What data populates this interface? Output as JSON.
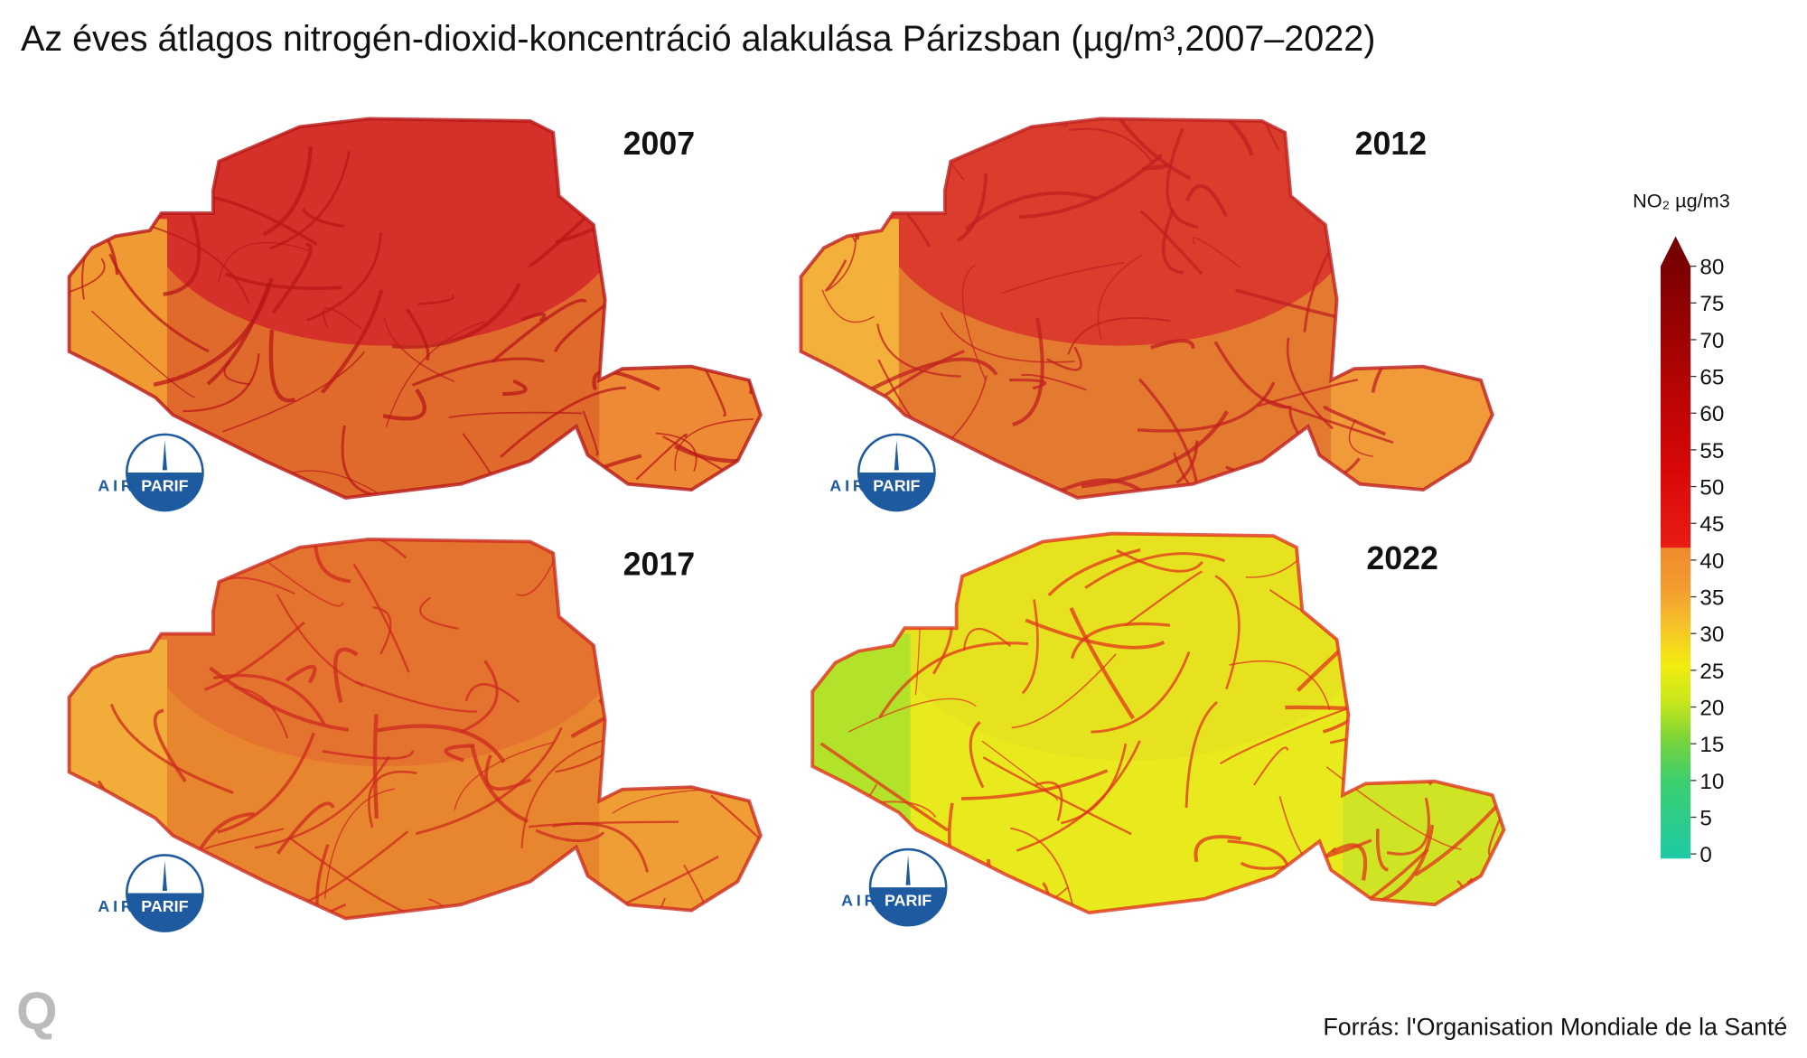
{
  "title": "Az éves átlagos nitrogén-dioxid-koncentráció alakulása  Párizsban (µg/m³,2007–2022)",
  "panels": [
    {
      "year": "2007"
    },
    {
      "year": "2012"
    },
    {
      "year": "2017"
    },
    {
      "year": "2022"
    }
  ],
  "logo": {
    "left": "AIR",
    "right": "PARIF"
  },
  "legend": {
    "title": "NO₂ µg/m3",
    "lim": [
      0,
      80
    ],
    "ticks": [
      0,
      5,
      10,
      15,
      20,
      25,
      30,
      35,
      40,
      45,
      50,
      55,
      60,
      65,
      70,
      75,
      80
    ]
  },
  "brand": "Q",
  "source": "Forrás: l'Organisation Mondiale de la Santé"
}
